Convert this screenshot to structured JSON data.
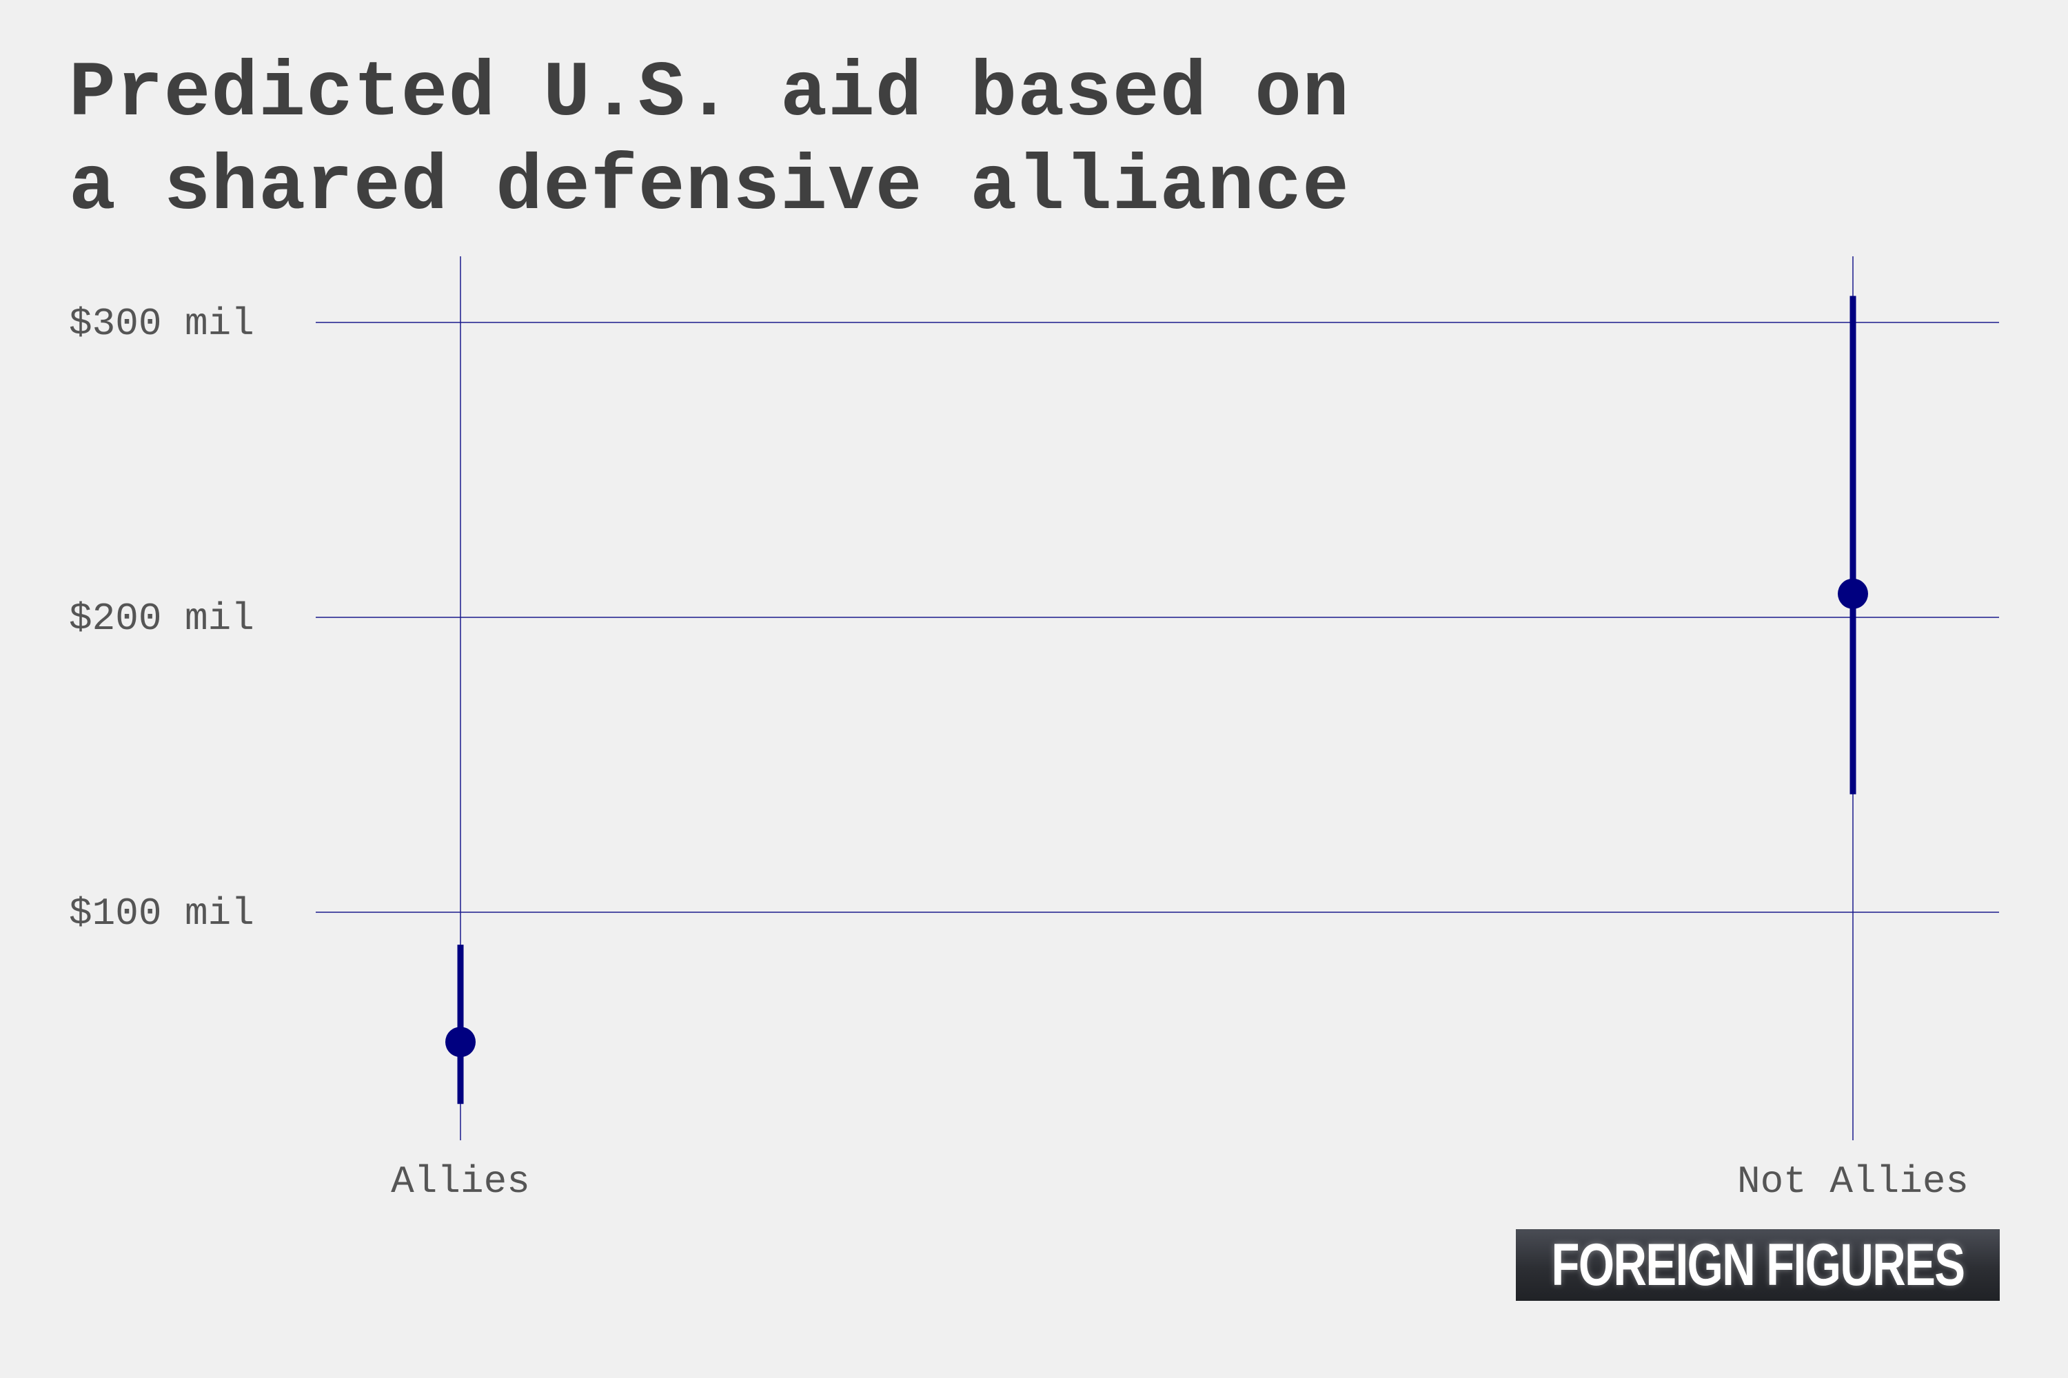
{
  "title_lines": [
    "Predicted U.S. aid based on",
    "a shared defensive alliance"
  ],
  "brand": "FOREIGN FIGURES",
  "colors": {
    "background": "#f0f0f0",
    "title": "#404040",
    "axis_text": "#555555",
    "grid": "#1a1a8c",
    "mark": "#000080"
  },
  "chart_data": {
    "type": "scatter",
    "categories": [
      "Allies",
      "Not Allies"
    ],
    "points": [
      {
        "category": "Allies",
        "value": 56,
        "lower": 35,
        "upper": 89
      },
      {
        "category": "Not Allies",
        "value": 208,
        "lower": 140,
        "upper": 309
      }
    ],
    "y_ticks": [
      100,
      200,
      300
    ],
    "y_tick_labels": [
      "$100 mil",
      "$200 mil",
      "$300 mil"
    ],
    "ylim": [
      22,
      322
    ],
    "grid": true,
    "error_bars": true
  }
}
